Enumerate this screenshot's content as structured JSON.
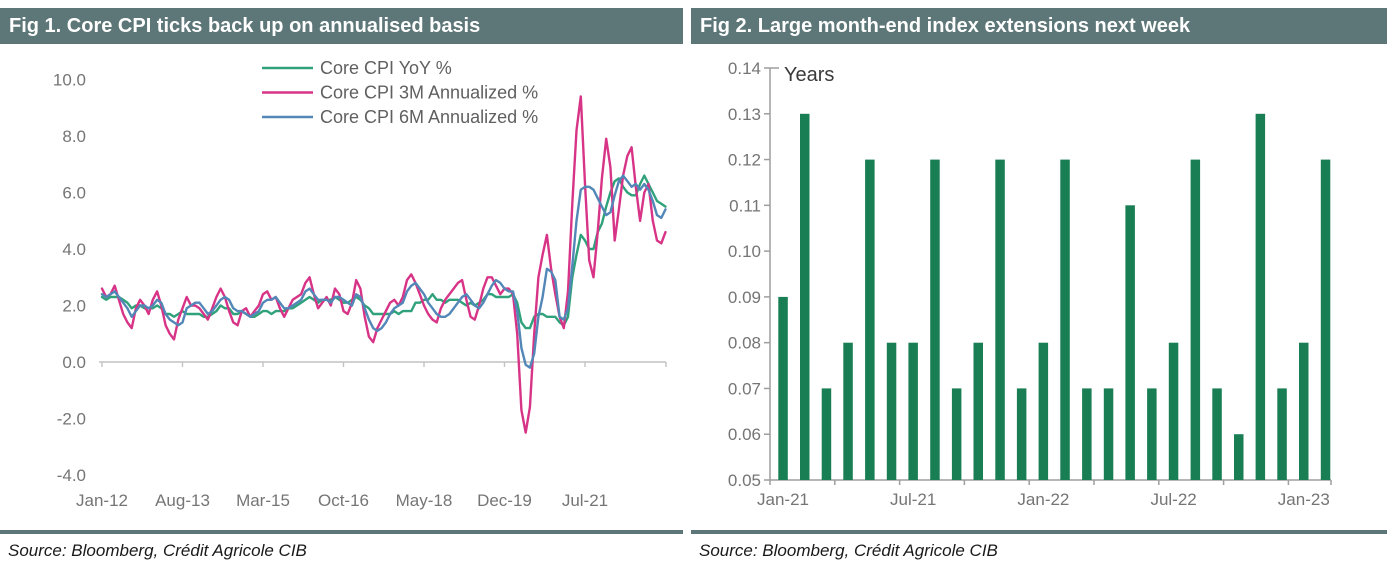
{
  "panels": {
    "fig1": {
      "title": "Fig 1. Core CPI ticks back up on annualised basis",
      "source": "Source: Bloomberg, Crédit Agricole CIB"
    },
    "fig2": {
      "title": "Fig 2. Large month-end index extensions next week",
      "source": "Source: Bloomberg, Crédit Agricole CIB"
    }
  },
  "colors": {
    "header_bg": "#5d7677",
    "header_text": "#ffffff",
    "divider": "#5d7677",
    "axis_line_fig1": "#c2c2c2",
    "axis_line_fig2": "#9e9e9e",
    "tick_label": "#757575",
    "legend_text": "#606060",
    "years_label": "#3a3a3a",
    "source_text": "#1a1a1a",
    "series_yoy": "#2fa27b",
    "series_3m": "#d73487",
    "series_6m": "#5287b8",
    "bar_green": "#1a7e54"
  },
  "chart_data": [
    {
      "type": "line",
      "figure": "Fig 1",
      "title": "Core CPI ticks back up on annualised basis",
      "x_frequency": "monthly",
      "x_start": "Jan-12",
      "x_end": "Feb-23",
      "x_tick_labels": [
        "Jan-12",
        "Aug-13",
        "Mar-15",
        "Oct-16",
        "May-18",
        "Dec-19",
        "Jul-21"
      ],
      "x_tick_positions": [
        0,
        19,
        38,
        57,
        76,
        95,
        114
      ],
      "ylim": [
        -4.0,
        10.0
      ],
      "y_ticks": [
        10,
        8,
        6,
        4,
        2,
        0,
        -2,
        -4
      ],
      "y_tick_decimals": 1,
      "grid": false,
      "legend_position": "top-center",
      "series": [
        {
          "name": "Core CPI YoY %",
          "color": "#2fa27b",
          "values": [
            2.3,
            2.2,
            2.3,
            2.3,
            2.3,
            2.2,
            2.1,
            1.9,
            2.0,
            2.0,
            1.9,
            1.9,
            1.9,
            2.0,
            1.9,
            1.7,
            1.7,
            1.6,
            1.7,
            1.8,
            1.7,
            1.7,
            1.7,
            1.7,
            1.6,
            1.6,
            1.7,
            1.8,
            2.0,
            1.9,
            1.9,
            1.7,
            1.7,
            1.8,
            1.7,
            1.6,
            1.6,
            1.7,
            1.8,
            1.8,
            1.7,
            1.8,
            1.8,
            1.8,
            1.9,
            1.9,
            2.0,
            2.1,
            2.2,
            2.3,
            2.2,
            2.1,
            2.2,
            2.2,
            2.2,
            2.3,
            2.2,
            2.1,
            2.1,
            2.2,
            2.3,
            2.2,
            2.0,
            1.9,
            1.7,
            1.7,
            1.7,
            1.7,
            1.7,
            1.8,
            1.7,
            1.8,
            1.8,
            1.8,
            2.1,
            2.1,
            2.2,
            2.2,
            2.4,
            2.2,
            2.2,
            2.1,
            2.2,
            2.2,
            2.2,
            2.1,
            2.0,
            2.1,
            2.0,
            2.1,
            2.2,
            2.4,
            2.4,
            2.3,
            2.3,
            2.3,
            2.3,
            2.4,
            2.1,
            1.4,
            1.2,
            1.2,
            1.6,
            1.7,
            1.7,
            1.6,
            1.6,
            1.6,
            1.4,
            1.3,
            1.6,
            3.0,
            3.8,
            4.5,
            4.3,
            4.0,
            4.0,
            4.6,
            4.9,
            5.5,
            6.0,
            6.4,
            6.5,
            6.2,
            6.0,
            5.9,
            5.9,
            6.3,
            6.6,
            6.3,
            6.0,
            5.7,
            5.6,
            5.5
          ]
        },
        {
          "name": "Core CPI 3M Annualized %",
          "color": "#d73487",
          "values": [
            2.6,
            2.3,
            2.4,
            2.7,
            2.2,
            1.7,
            1.4,
            1.2,
            1.9,
            2.2,
            2.0,
            1.7,
            2.2,
            2.5,
            2.0,
            1.3,
            1.0,
            0.8,
            1.5,
            1.9,
            2.3,
            2.0,
            2.0,
            1.9,
            1.7,
            1.5,
            1.9,
            2.3,
            2.6,
            2.3,
            1.8,
            1.4,
            1.3,
            1.8,
            1.9,
            1.6,
            1.8,
            2.0,
            2.4,
            2.5,
            2.2,
            2.3,
            1.9,
            1.6,
            1.9,
            2.2,
            2.3,
            2.4,
            2.8,
            3.0,
            2.4,
            1.9,
            2.1,
            2.3,
            2.0,
            2.6,
            2.4,
            1.8,
            1.7,
            2.1,
            2.9,
            2.6,
            1.6,
            0.9,
            0.7,
            1.2,
            1.5,
            1.8,
            2.1,
            2.2,
            2.0,
            2.3,
            2.9,
            3.1,
            2.8,
            2.4,
            2.0,
            1.7,
            1.5,
            1.4,
            1.9,
            2.2,
            2.4,
            2.6,
            2.8,
            2.9,
            2.2,
            1.6,
            1.5,
            2.0,
            2.6,
            3.0,
            3.0,
            2.7,
            2.4,
            2.6,
            2.6,
            2.4,
            1.0,
            -1.7,
            -2.5,
            -1.6,
            1.0,
            3.0,
            3.8,
            4.5,
            3.3,
            2.4,
            1.6,
            1.2,
            2.5,
            5.6,
            8.2,
            9.4,
            6.3,
            3.6,
            3.0,
            4.6,
            6.5,
            7.9,
            6.9,
            4.3,
            5.4,
            6.6,
            7.3,
            7.6,
            6.2,
            5.0,
            6.0,
            6.3,
            5.0,
            4.3,
            4.2,
            4.6
          ]
        },
        {
          "name": "Core CPI 6M Annualized %",
          "color": "#5287b8",
          "values": [
            2.4,
            2.3,
            2.4,
            2.5,
            2.3,
            2.1,
            1.9,
            1.6,
            1.8,
            2.0,
            2.0,
            1.9,
            2.0,
            2.2,
            2.1,
            1.7,
            1.5,
            1.4,
            1.3,
            1.4,
            1.9,
            2.0,
            2.1,
            2.1,
            1.9,
            1.7,
            1.8,
            2.0,
            2.2,
            2.3,
            2.2,
            1.9,
            1.8,
            1.8,
            1.7,
            1.6,
            1.7,
            1.8,
            2.1,
            2.2,
            2.2,
            2.3,
            2.1,
            1.9,
            1.9,
            2.0,
            2.1,
            2.2,
            2.5,
            2.6,
            2.4,
            2.2,
            2.2,
            2.2,
            2.1,
            2.3,
            2.3,
            2.2,
            2.1,
            2.0,
            2.4,
            2.3,
            1.9,
            1.5,
            1.2,
            1.1,
            1.2,
            1.4,
            1.7,
            1.9,
            2.0,
            2.1,
            2.5,
            2.7,
            2.8,
            2.6,
            2.4,
            2.1,
            1.9,
            1.7,
            1.6,
            1.6,
            1.7,
            1.9,
            2.1,
            2.3,
            2.4,
            2.2,
            2.0,
            1.9,
            2.1,
            2.4,
            2.7,
            2.9,
            2.8,
            2.6,
            2.5,
            2.5,
            1.8,
            0.5,
            -0.1,
            -0.2,
            0.3,
            1.6,
            2.3,
            3.3,
            3.2,
            2.9,
            1.6,
            1.5,
            1.9,
            3.4,
            5.0,
            6.1,
            6.2,
            6.2,
            6.1,
            5.8,
            5.5,
            5.2,
            5.3,
            5.9,
            6.4,
            6.6,
            6.4,
            6.2,
            6.3,
            6.1,
            6.3,
            6.1,
            5.7,
            5.2,
            5.1,
            5.4
          ]
        }
      ]
    },
    {
      "type": "bar",
      "figure": "Fig 2",
      "title": "Large month-end index extensions next week",
      "unit_label": "Years",
      "categories": [
        "Jan-21",
        "Feb-21",
        "Mar-21",
        "Apr-21",
        "May-21",
        "Jun-21",
        "Jul-21",
        "Aug-21",
        "Sep-21",
        "Oct-21",
        "Nov-21",
        "Dec-21",
        "Jan-22",
        "Feb-22",
        "Mar-22",
        "Apr-22",
        "May-22",
        "Jun-22",
        "Jul-22",
        "Aug-22",
        "Sep-22",
        "Oct-22",
        "Nov-22",
        "Dec-22",
        "Jan-23",
        "Feb-23"
      ],
      "values": [
        0.09,
        0.13,
        0.07,
        0.08,
        0.12,
        0.08,
        0.08,
        0.12,
        0.07,
        0.08,
        0.12,
        0.07,
        0.08,
        0.12,
        0.07,
        0.07,
        0.11,
        0.07,
        0.08,
        0.12,
        0.07,
        0.06,
        0.13,
        0.07,
        0.08,
        0.12
      ],
      "x_tick_labels": [
        "Jan-21",
        "Jul-21",
        "Jan-22",
        "Jul-22",
        "Jan-23"
      ],
      "x_tick_positions": [
        0,
        6,
        12,
        18,
        24
      ],
      "ylim": [
        0.05,
        0.14
      ],
      "y_ticks": [
        0.14,
        0.13,
        0.12,
        0.11,
        0.1,
        0.09,
        0.08,
        0.07,
        0.06,
        0.05
      ],
      "y_tick_decimals": 2,
      "bar_color": "#1a7e54",
      "grid": false,
      "legend_position": "none"
    }
  ]
}
